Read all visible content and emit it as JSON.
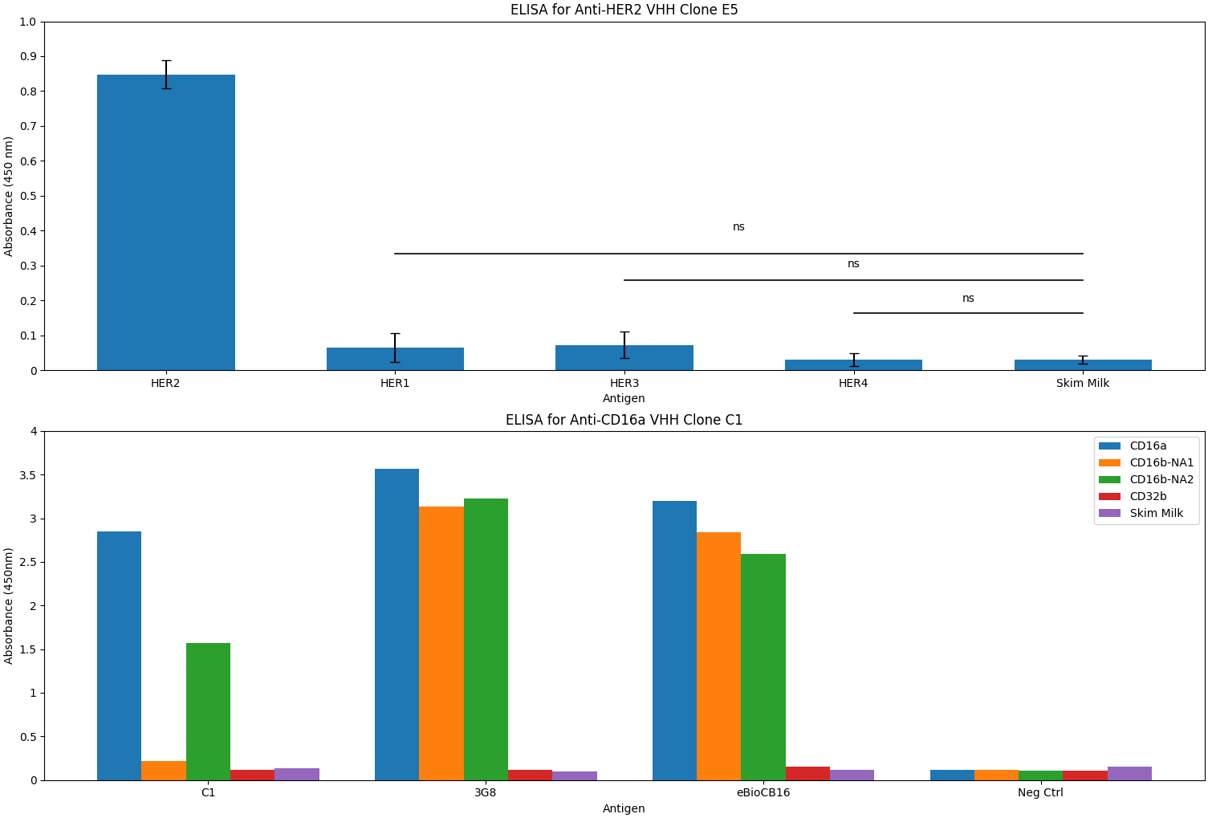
{
  "chart_data": [
    {
      "type": "bar",
      "title": "ELISA for Anti-HER2 VHH Clone E5",
      "xlabel": "Antigen",
      "ylabel": "Absorbance (450 nm)",
      "categories": [
        "HER2",
        "HER1",
        "HER3",
        "HER4",
        "Skim Milk"
      ],
      "values": [
        0.848,
        0.065,
        0.072,
        0.03,
        0.03
      ],
      "errors": [
        0.04,
        0.042,
        0.038,
        0.018,
        0.012
      ],
      "ylim": [
        0,
        1.0
      ],
      "yticks": [
        0,
        0.1,
        0.2,
        0.3,
        0.4,
        0.5,
        0.6,
        0.7,
        0.8,
        0.9,
        {
          "value": 1.0,
          "label": "1.0"
        }
      ],
      "annotations": [
        {
          "x1": "HER1",
          "x2": "Skim Milk",
          "y": 0.335,
          "text_y": 0.41,
          "text": "ns"
        },
        {
          "x1": "HER3",
          "x2": "Skim Milk",
          "y": 0.258,
          "text_y": 0.305,
          "text": "ns"
        },
        {
          "x1": "HER4",
          "x2": "Skim Milk",
          "y": 0.163,
          "text_y": 0.205,
          "text": "ns"
        }
      ]
    },
    {
      "type": "bar",
      "title": "ELISA for Anti-CD16a VHH Clone C1",
      "xlabel": "Antigen",
      "ylabel": "Absorbance (450nm)",
      "categories": [
        "C1",
        "3G8",
        "eBioCB16",
        "Neg Ctrl"
      ],
      "series": [
        {
          "name": "CD16a",
          "values": [
            2.85,
            3.57,
            3.2,
            0.12
          ]
        },
        {
          "name": "CD16b-NA1",
          "values": [
            0.22,
            3.13,
            2.84,
            0.12
          ]
        },
        {
          "name": "CD16b-NA2",
          "values": [
            1.57,
            3.23,
            2.59,
            0.11
          ]
        },
        {
          "name": "CD32b",
          "values": [
            0.12,
            0.12,
            0.15,
            0.11
          ]
        },
        {
          "name": "Skim Milk",
          "values": [
            0.13,
            0.1,
            0.12,
            0.15
          ]
        }
      ],
      "ylim": [
        0,
        4
      ],
      "yticks": [
        0,
        0.5,
        1,
        1.5,
        2,
        2.5,
        3,
        3.5,
        4
      ],
      "legend": "upper right"
    }
  ]
}
